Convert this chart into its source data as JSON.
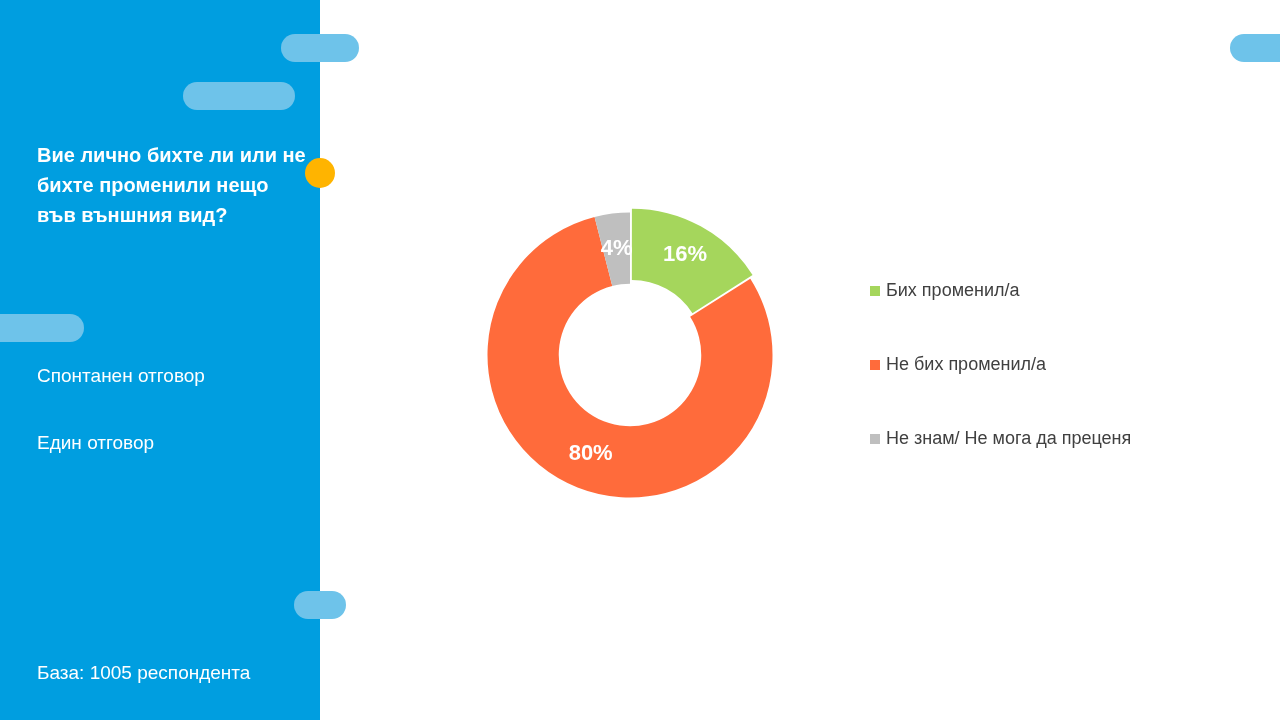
{
  "chart_data": {
    "type": "donut",
    "title": "Вие лично бихте ли или не бихте променили нещо във външния вид?",
    "annotations": [
      "Спонтанен отговор",
      "Един отговор",
      "База:  1005 респондента"
    ],
    "categories": [
      "Бих променил/а",
      "Не бих променил/а",
      "Не знам/ Не мога да преценя"
    ],
    "values": [
      16,
      80,
      4
    ],
    "colors": [
      "#a5d65c",
      "#ff6b3b",
      "#bfbfbf"
    ],
    "value_labels": [
      "16%",
      "80%",
      "4%"
    ],
    "legend": "right"
  }
}
